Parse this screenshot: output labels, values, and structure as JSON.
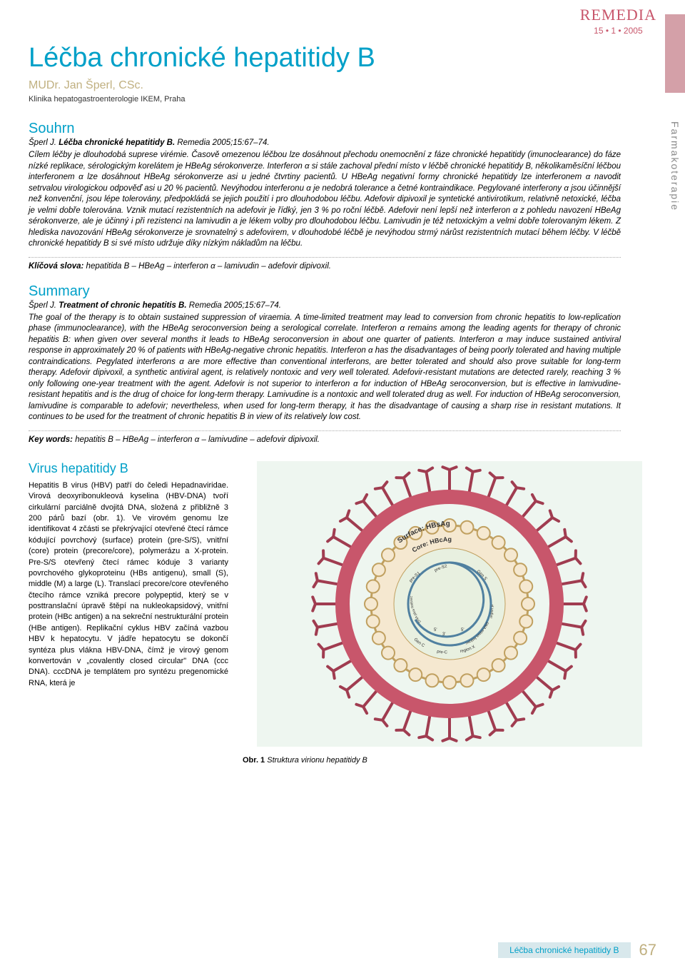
{
  "journal": {
    "name": "REMEDIA",
    "issue": "15 • 1 • 2005",
    "name_color": "#c8566b",
    "issue_color": "#c8566b"
  },
  "side_label": "Farmakoterapie",
  "article": {
    "title": "Léčba chronické hepatitidy B",
    "title_color": "#00a0c8",
    "author": "MUDr. Jan Šperl, CSc.",
    "author_color": "#c0b080",
    "affiliation": "Klinika hepatogastroenterologie IKEM, Praha"
  },
  "souhrn": {
    "heading": "Souhrn",
    "citation_author": "Šperl J.",
    "citation_title": "Léčba chronické hepatitidy B.",
    "citation_ref": "Remedia 2005;15:67–74.",
    "body": "Cílem léčby je dlouhodobá suprese virémie. Časově omezenou léčbou lze dosáhnout přechodu onemocnění z fáze chronické hepatitidy (imunoclearance) do fáze nízké replikace, sérologickým korelátem je HBeAg sérokonverze. Interferon α si stále zachoval přední místo v léčbě chronické hepatitidy B, několikaměsíční léčbou interferonem α lze dosáhnout HBeAg sérokonverze asi u jedné čtvrtiny pacientů. U HBeAg negativní formy chronické hepatitidy lze interferonem α navodit setrvalou virologickou odpověď asi u 20 % pacientů. Nevýhodou interferonu α je nedobrá tolerance a četné kontraindikace. Pegylované interferony α jsou účinnější než konvenční, jsou lépe tolerovány, předpokládá se jejich použití i pro dlouhodobou léčbu. Adefovir dipivoxil je syntetické antivirotikum, relativně netoxické, léčba je velmi dobře tolerována. Vznik mutací rezistentních na adefovir je řídký, jen 3 % po roční léčbě. Adefovir není lepší než interferon α z pohledu navození HBeAg sérokonverze, ale je účinný i při rezistenci na lamivudin a je lékem volby pro dlouhodobou léčbu. Lamivudin je též netoxickým a velmi dobře tolerovaným lékem. Z hlediska navozování HBeAg sérokonverze je srovnatelný s adefovirem, v dlouhodobé léčbě je nevýhodou strmý nárůst rezistentních mutací během léčby. V léčbě chronické hepatitidy B si své místo udržuje díky nízkým nákladům na léčbu.",
    "kw_label": "Klíčová slova:",
    "kw_value": "hepatitida B – HBeAg – interferon α – lamivudin – adefovir dipivoxil."
  },
  "summary": {
    "heading": "Summary",
    "citation_author": "Šperl J.",
    "citation_title": "Treatment of chronic hepatitis B.",
    "citation_ref": "Remedia 2005;15:67–74.",
    "body": "The goal of the therapy is to obtain sustained suppression of viraemia. A time-limited treatment may lead to conversion from chronic hepatitis to low-replication phase (immunoclearance), with the HBeAg seroconversion being a serological correlate. Interferon α remains among the leading agents for therapy of chronic hepatitis B: when given over several months it leads to HBeAg seroconversion in about one quarter of patients. Interferon α may induce sustained antiviral response in approximately 20 % of patients with HBeAg-negative chronic hepatitis. Interferon α has the disadvantages of being poorly tolerated and having multiple contraindications. Pegylated interferons α are more effective than conventional interferons, are better tolerated and should also prove suitable for long-term therapy. Adefovir dipivoxil, a synthetic antiviral agent, is relatively nontoxic and very well tolerated. Adefovir-resistant mutations are detected rarely, reaching 3 % only following one-year treatment with the agent. Adefovir is not superior to interferon α for induction of HBeAg seroconversion, but is effective in lamivudine-resistant hepatitis and is the drug of choice for long-term therapy. Lamivudine is a nontoxic and well tolerated drug as well. For induction of HBeAg seroconversion, lamivudine is comparable to adefovir; nevertheless, when used for long-term therapy, it has the disadvantage of causing a sharp rise in resistant mutations. It continues to be used for the treatment of chronic hepatitis B in view of its relatively low cost.",
    "kw_label": "Key words:",
    "kw_value": "hepatitis B – HBeAg – interferon α – lamivudine – adefovir dipivoxil."
  },
  "section": {
    "heading": "Virus hepatitidy B",
    "body": "Hepatitis B virus (HBV) patří do čeledi Hepadnaviridae. Virová deoxyribonukleová kyselina (HBV-DNA) tvoří cirkulární parciálně dvojitá DNA, složená z přibližně 3 200 párů bazí (obr. 1). Ve virovém genomu lze identifikovat 4 zčásti se překrývající otevřené čtecí rámce kódující povrchový (surface) protein (pre-S/S), vnitřní (core) protein (precore/core), polymerázu a X-protein. Pre-S/S otevřený čtecí rámec kóduje 3 varianty povrchového glykoproteinu (HBs antigenu), small (S), middle (M) a large (L). Translací precore/core otevřeného čtecího rámce vzniká precore polypeptid, který se v posttranslační úpravě štěpí na nukleokapsidový, vnitřní protein (HBc antigen) a na sekreční nestrukturální protein (HBe antigen).\nReplikační cyklus HBV začíná vazbou HBV k hepatocytu. V jádře hepatocytu se dokončí syntéza plus vlákna HBV-DNA, čímž je virový genom konvertován v „covalently closed circular\" DNA (ccc DNA). cccDNA je templátem pro syntézu pregenomické RNA, která je"
  },
  "figure": {
    "caption_label": "Obr. 1",
    "caption_text": "Struktura virionu hepatitidy B",
    "labels": {
      "surface": "Surface: HBsAg",
      "core": "Core: HBcAg",
      "preS2": "pre-S2",
      "preS1": "pre-S1",
      "genS": "Gen S",
      "dna_plus": "DNA plus řetězec",
      "dna_minus": "DNA minus řetězec",
      "protein": "terminální protein",
      "rna": "RNAázaH",
      "polym": "polymeráza",
      "genC": "Gen C",
      "preC": "pre-C",
      "regionX": "region X",
      "regionP": "region P",
      "five": "5'",
      "three": "3'"
    },
    "colors": {
      "background": "#eef6f0",
      "envelope": "#c8566b",
      "spike_dark": "#a03c50",
      "core_fill": "#f5e8d0",
      "core_stroke": "#c0a060",
      "inner_fill": "#e8f0e0",
      "dna_stroke": "#5080a0"
    }
  },
  "footer": {
    "title": "Léčba chronické hepatitidy B",
    "page": "67",
    "title_bg": "#d8e8ec",
    "title_color": "#00a0c8",
    "page_color": "#c0b080"
  }
}
